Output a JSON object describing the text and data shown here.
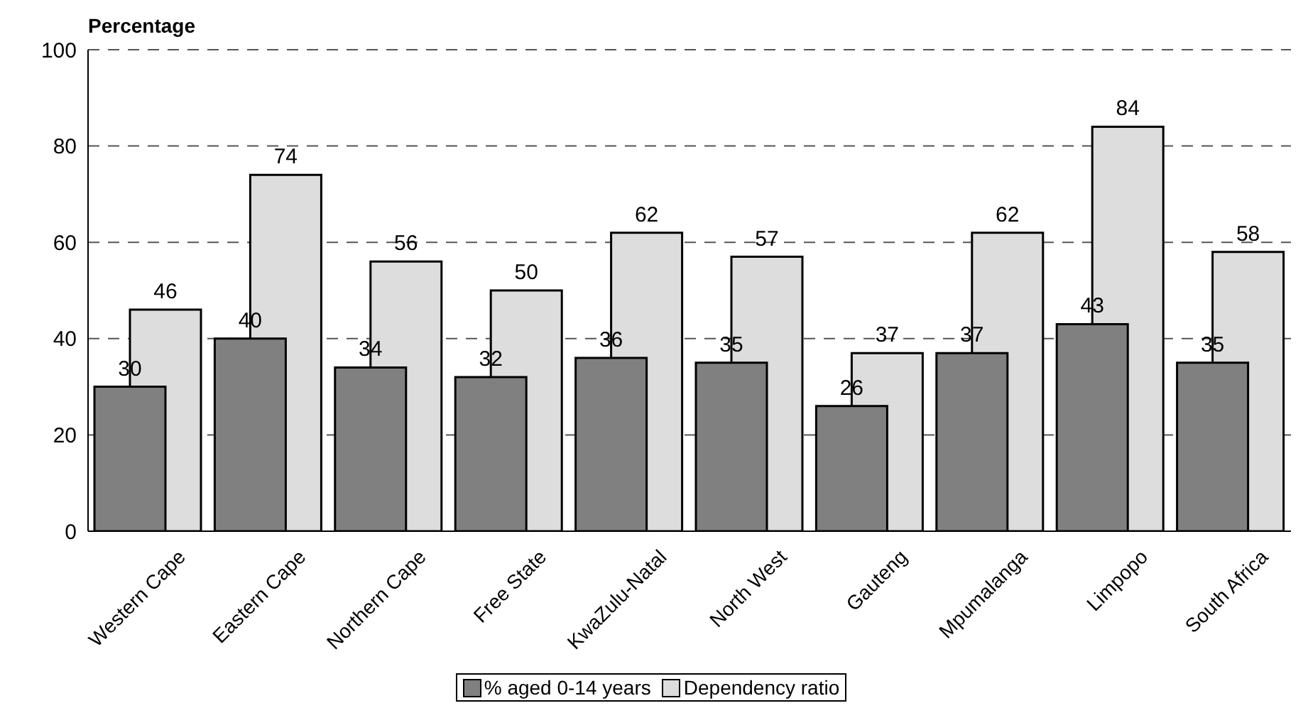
{
  "chart_data": {
    "type": "bar",
    "ylabel": "Percentage",
    "categories": [
      "Western Cape",
      "Eastern Cape",
      "Northern Cape",
      "Free State",
      "KwaZulu-Natal",
      "North West",
      "Gauteng",
      "Mpumalanga",
      "Limpopo",
      "South Africa"
    ],
    "series": [
      {
        "name": "% aged 0-14 years",
        "color": "#808080",
        "values": [
          30,
          40,
          34,
          32,
          36,
          35,
          26,
          37,
          43,
          35
        ]
      },
      {
        "name": "Dependency ratio",
        "color": "#dddddd",
        "values": [
          46,
          74,
          56,
          50,
          62,
          57,
          37,
          62,
          84,
          58
        ]
      }
    ],
    "ylim": [
      0,
      100
    ],
    "yticks": [
      0,
      20,
      40,
      60,
      80,
      100
    ],
    "grid": "y",
    "legend": "bottom",
    "data_labels": true
  }
}
